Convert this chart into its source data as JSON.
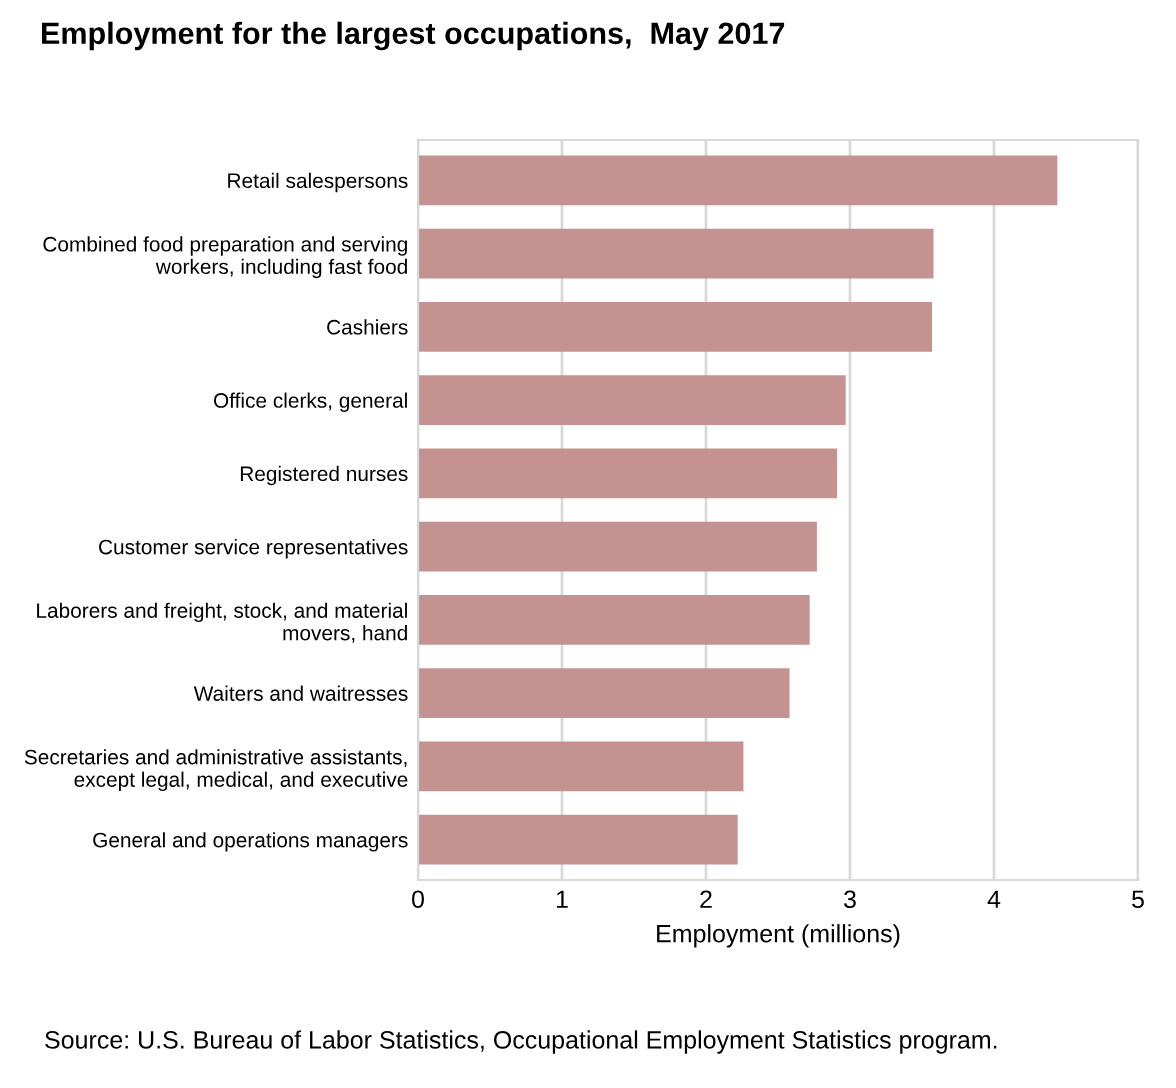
{
  "chart_data": {
    "type": "bar",
    "orientation": "horizontal",
    "title": "Employment for the largest occupations,  May 2017",
    "categories": [
      "Retail salespersons",
      "Combined food preparation and serving\nworkers, including fast food",
      "Cashiers",
      "Office clerks, general",
      "Registered nurses",
      "Customer service representatives",
      "Laborers and freight, stock, and material\nmovers, hand",
      "Waiters and waitresses",
      "Secretaries and administrative assistants,\nexcept legal, medical, and executive",
      "General and operations managers"
    ],
    "values": [
      4.44,
      3.58,
      3.57,
      2.97,
      2.91,
      2.77,
      2.72,
      2.58,
      2.26,
      2.22
    ],
    "color": "#c49391",
    "xlabel": "Employment (millions)",
    "xlim": [
      0,
      5
    ],
    "xticks": [
      0,
      1,
      2,
      3,
      4,
      5
    ],
    "grid": "x",
    "annotations": [
      "Source: U.S. Bureau of Labor Statistics, Occupational Employment Statistics program."
    ]
  }
}
